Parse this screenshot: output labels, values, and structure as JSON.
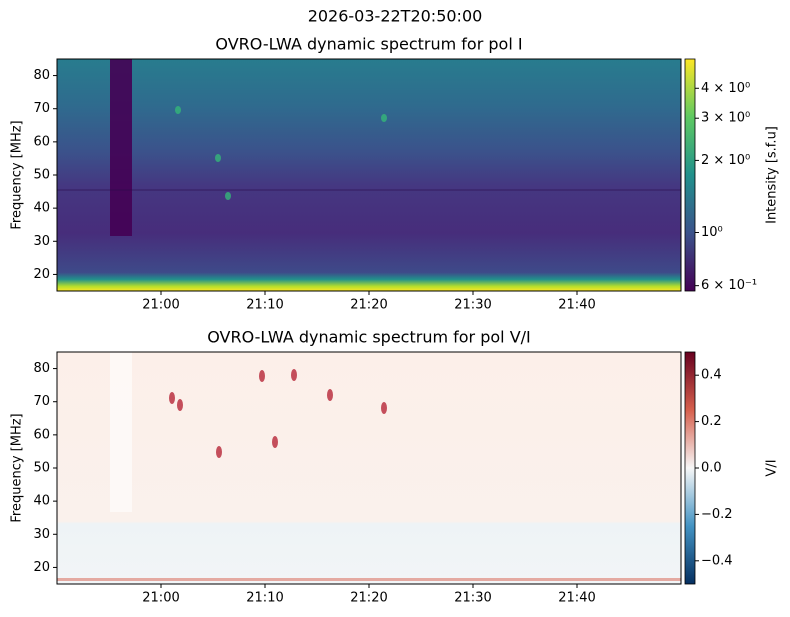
{
  "title": "2026-03-22T20:50:00",
  "chart_data": [
    {
      "type": "heatmap",
      "title": "OVRO-LWA dynamic spectrum for pol I",
      "ylabel": "Frequency [MHz]",
      "xlim": [
        "20:50",
        "21:50"
      ],
      "xticks": [
        "21:00",
        "21:10",
        "21:20",
        "21:30",
        "21:40"
      ],
      "ylim": [
        15,
        85
      ],
      "yticks": [
        20,
        30,
        40,
        50,
        60,
        70,
        80
      ],
      "colorbar": {
        "label": "Intensity [s.f.u]",
        "scale": "log",
        "lim": [
          0.57,
          5.3
        ],
        "colors": [
          "#440154",
          "#3b528b",
          "#21918c",
          "#5ec962",
          "#fde725"
        ],
        "ticks": [
          {
            "value": 0.6,
            "label": "6 × 10⁻¹"
          },
          {
            "value": 1,
            "label": "10⁰"
          },
          {
            "value": 2,
            "label": "2 × 10⁰"
          },
          {
            "value": 3,
            "label": "3 × 10⁰"
          },
          {
            "value": 4,
            "label": "4 × 10⁰"
          }
        ]
      }
    },
    {
      "type": "heatmap",
      "title": "OVRO-LWA dynamic spectrum for pol V/I",
      "ylabel": "Frequency [MHz]",
      "xlim": [
        "20:50",
        "21:50"
      ],
      "xticks": [
        "21:00",
        "21:10",
        "21:20",
        "21:30",
        "21:40"
      ],
      "ylim": [
        15,
        85
      ],
      "yticks": [
        20,
        30,
        40,
        50,
        60,
        70,
        80
      ],
      "colorbar": {
        "label": "V/I",
        "scale": "linear",
        "lim": [
          -0.5,
          0.5
        ],
        "colors": [
          "#053061",
          "#4393c3",
          "#f7f7f7",
          "#d6604d",
          "#67001f"
        ],
        "ticks": [
          {
            "value": -0.4,
            "label": "−0.4"
          },
          {
            "value": -0.2,
            "label": "−0.2"
          },
          {
            "value": 0,
            "label": "0.0"
          },
          0.2,
          0.4
        ]
      }
    }
  ]
}
